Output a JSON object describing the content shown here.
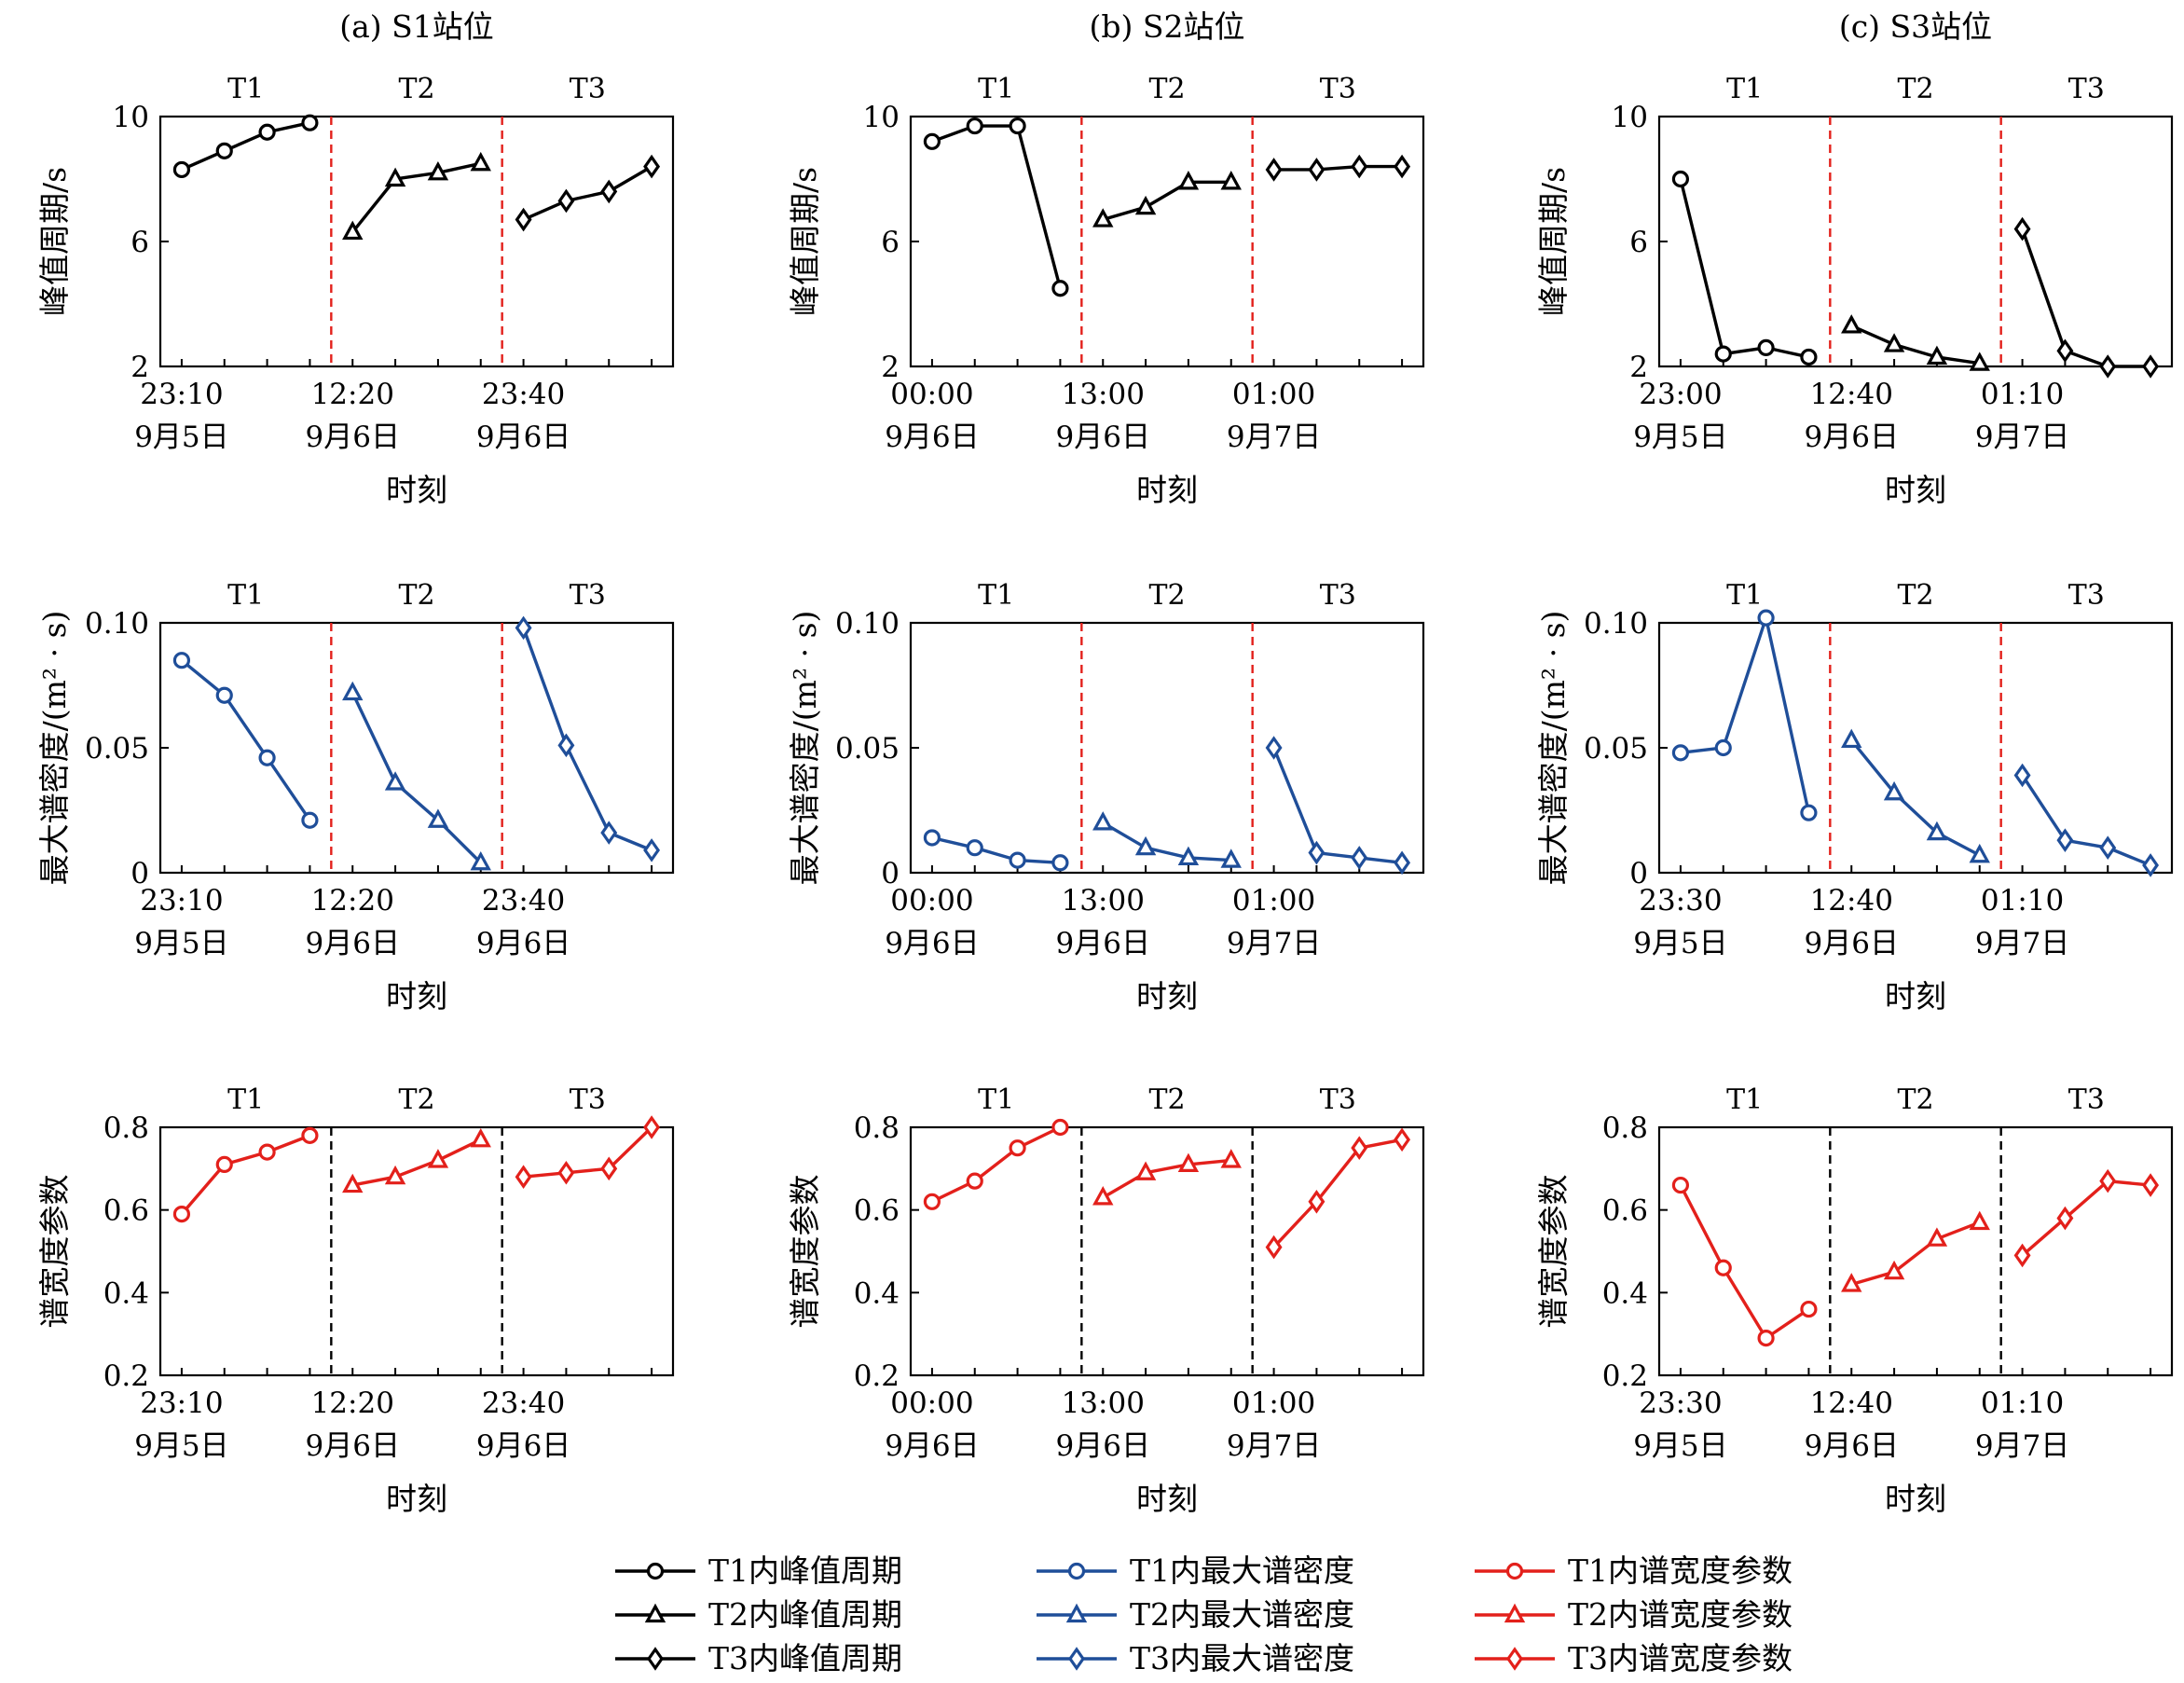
{
  "colors": {
    "black": "#000000",
    "blue": "#1f4e99",
    "red": "#e3201b"
  },
  "column_titles": [
    "(a) S1站位",
    "(b) S2站位",
    "(c) S3站位"
  ],
  "xlabel": "时刻",
  "group_labels": [
    "T1",
    "T2",
    "T3"
  ],
  "legend": [
    [
      {
        "label": "T1内峰值周期",
        "color": "black",
        "marker": "circle"
      },
      {
        "label": "T2内峰值周期",
        "color": "black",
        "marker": "triangle"
      },
      {
        "label": "T3内峰值周期",
        "color": "black",
        "marker": "diamond"
      }
    ],
    [
      {
        "label": "T1内最大谱密度",
        "color": "blue",
        "marker": "circle"
      },
      {
        "label": "T2内最大谱密度",
        "color": "blue",
        "marker": "triangle"
      },
      {
        "label": "T3内最大谱密度",
        "color": "blue",
        "marker": "diamond"
      }
    ],
    [
      {
        "label": "T1内谱宽度参数",
        "color": "red",
        "marker": "circle"
      },
      {
        "label": "T2内谱宽度参数",
        "color": "red",
        "marker": "triangle"
      },
      {
        "label": "T3内谱宽度参数",
        "color": "red",
        "marker": "diamond"
      }
    ]
  ],
  "chart_data": [
    {
      "type": "line",
      "row": 0,
      "col": 0,
      "ylabel": "峰值周期/s",
      "ylim": [
        2,
        10
      ],
      "yticks": [
        "2",
        "6",
        "10"
      ],
      "ytick_values": [
        2,
        6,
        10
      ],
      "color": "black",
      "divider_color": "red",
      "x_ticks": [
        {
          "time": "23:10",
          "date": "9月5日"
        },
        {
          "time": "12:20",
          "date": "9月6日"
        },
        {
          "time": "23:40",
          "date": "9月6日"
        }
      ],
      "series": [
        {
          "marker": "circle",
          "values": [
            8.3,
            8.9,
            9.5,
            9.8
          ]
        },
        {
          "marker": "triangle",
          "values": [
            6.3,
            8.0,
            8.2,
            8.5
          ]
        },
        {
          "marker": "diamond",
          "values": [
            6.7,
            7.3,
            7.6,
            8.4
          ]
        }
      ]
    },
    {
      "type": "line",
      "row": 0,
      "col": 1,
      "ylabel": "峰值周期/s",
      "ylim": [
        2,
        10
      ],
      "yticks": [
        "2",
        "6",
        "10"
      ],
      "ytick_values": [
        2,
        6,
        10
      ],
      "color": "black",
      "divider_color": "red",
      "x_ticks": [
        {
          "time": "00:00",
          "date": "9月6日"
        },
        {
          "time": "13:00",
          "date": "9月6日"
        },
        {
          "time": "01:00",
          "date": "9月7日"
        }
      ],
      "series": [
        {
          "marker": "circle",
          "values": [
            9.2,
            9.7,
            9.7,
            4.5
          ]
        },
        {
          "marker": "triangle",
          "values": [
            6.7,
            7.1,
            7.9,
            7.9
          ]
        },
        {
          "marker": "diamond",
          "values": [
            8.3,
            8.3,
            8.4,
            8.4
          ]
        }
      ]
    },
    {
      "type": "line",
      "row": 0,
      "col": 2,
      "ylabel": "峰值周期/s",
      "ylim": [
        2,
        10
      ],
      "yticks": [
        "2",
        "6",
        "10"
      ],
      "ytick_values": [
        2,
        6,
        10
      ],
      "color": "black",
      "divider_color": "red",
      "x_ticks": [
        {
          "time": "23:00",
          "date": "9月5日"
        },
        {
          "time": "12:40",
          "date": "9月6日"
        },
        {
          "time": "01:10",
          "date": "9月7日"
        }
      ],
      "series": [
        {
          "marker": "circle",
          "values": [
            8.0,
            2.4,
            2.6,
            2.3
          ]
        },
        {
          "marker": "triangle",
          "values": [
            3.3,
            2.7,
            2.3,
            2.1
          ]
        },
        {
          "marker": "diamond",
          "values": [
            6.4,
            2.5,
            2.0,
            2.0
          ]
        }
      ]
    },
    {
      "type": "line",
      "row": 1,
      "col": 0,
      "ylabel": "最大谱密度/(m² · s)",
      "ylim": [
        0,
        0.1
      ],
      "yticks": [
        "0",
        "0.05",
        "0.10"
      ],
      "ytick_values": [
        0,
        0.05,
        0.1
      ],
      "color": "blue",
      "divider_color": "red",
      "x_ticks": [
        {
          "time": "23:10",
          "date": "9月5日"
        },
        {
          "time": "12:20",
          "date": "9月6日"
        },
        {
          "time": "23:40",
          "date": "9月6日"
        }
      ],
      "series": [
        {
          "marker": "circle",
          "values": [
            0.085,
            0.071,
            0.046,
            0.021
          ]
        },
        {
          "marker": "triangle",
          "values": [
            0.072,
            0.036,
            0.021,
            0.004
          ]
        },
        {
          "marker": "diamond",
          "values": [
            0.098,
            0.051,
            0.016,
            0.009
          ]
        }
      ]
    },
    {
      "type": "line",
      "row": 1,
      "col": 1,
      "ylabel": "最大谱密度/(m² · s)",
      "ylim": [
        0,
        0.1
      ],
      "yticks": [
        "0",
        "0.05",
        "0.10"
      ],
      "ytick_values": [
        0,
        0.05,
        0.1
      ],
      "color": "blue",
      "divider_color": "red",
      "x_ticks": [
        {
          "time": "00:00",
          "date": "9月6日"
        },
        {
          "time": "13:00",
          "date": "9月6日"
        },
        {
          "time": "01:00",
          "date": "9月7日"
        }
      ],
      "series": [
        {
          "marker": "circle",
          "values": [
            0.014,
            0.01,
            0.005,
            0.004
          ]
        },
        {
          "marker": "triangle",
          "values": [
            0.02,
            0.01,
            0.006,
            0.005
          ]
        },
        {
          "marker": "diamond",
          "values": [
            0.05,
            0.008,
            0.006,
            0.004
          ]
        }
      ]
    },
    {
      "type": "line",
      "row": 1,
      "col": 2,
      "ylabel": "最大谱密度/(m² · s)",
      "ylim": [
        0,
        0.1
      ],
      "yticks": [
        "0",
        "0.05",
        "0.10"
      ],
      "ytick_values": [
        0,
        0.05,
        0.1
      ],
      "color": "blue",
      "divider_color": "red",
      "x_ticks": [
        {
          "time": "23:30",
          "date": "9月5日"
        },
        {
          "time": "12:40",
          "date": "9月6日"
        },
        {
          "time": "01:10",
          "date": "9月7日"
        }
      ],
      "series": [
        {
          "marker": "circle",
          "values": [
            0.048,
            0.05,
            0.102,
            0.024
          ]
        },
        {
          "marker": "triangle",
          "values": [
            0.053,
            0.032,
            0.016,
            0.007
          ]
        },
        {
          "marker": "diamond",
          "values": [
            0.039,
            0.013,
            0.01,
            0.003
          ]
        }
      ]
    },
    {
      "type": "line",
      "row": 2,
      "col": 0,
      "ylabel": "谱宽度参数",
      "ylim": [
        0.2,
        0.8
      ],
      "yticks": [
        "0.2",
        "0.4",
        "0.6",
        "0.8"
      ],
      "ytick_values": [
        0.2,
        0.4,
        0.6,
        0.8
      ],
      "color": "red",
      "divider_color": "black",
      "x_ticks": [
        {
          "time": "23:10",
          "date": "9月5日"
        },
        {
          "time": "12:20",
          "date": "9月6日"
        },
        {
          "time": "23:40",
          "date": "9月6日"
        }
      ],
      "series": [
        {
          "marker": "circle",
          "values": [
            0.59,
            0.71,
            0.74,
            0.78
          ]
        },
        {
          "marker": "triangle",
          "values": [
            0.66,
            0.68,
            0.72,
            0.77
          ]
        },
        {
          "marker": "diamond",
          "values": [
            0.68,
            0.69,
            0.7,
            0.8
          ]
        }
      ]
    },
    {
      "type": "line",
      "row": 2,
      "col": 1,
      "ylabel": "谱宽度参数",
      "ylim": [
        0.2,
        0.8
      ],
      "yticks": [
        "0.2",
        "0.4",
        "0.6",
        "0.8"
      ],
      "ytick_values": [
        0.2,
        0.4,
        0.6,
        0.8
      ],
      "color": "red",
      "divider_color": "black",
      "x_ticks": [
        {
          "time": "00:00",
          "date": "9月6日"
        },
        {
          "time": "13:00",
          "date": "9月6日"
        },
        {
          "time": "01:00",
          "date": "9月7日"
        }
      ],
      "series": [
        {
          "marker": "circle",
          "values": [
            0.62,
            0.67,
            0.75,
            0.8
          ]
        },
        {
          "marker": "triangle",
          "values": [
            0.63,
            0.69,
            0.71,
            0.72
          ]
        },
        {
          "marker": "diamond",
          "values": [
            0.51,
            0.62,
            0.75,
            0.77
          ]
        }
      ]
    },
    {
      "type": "line",
      "row": 2,
      "col": 2,
      "ylabel": "谱宽度参数",
      "ylim": [
        0.2,
        0.8
      ],
      "yticks": [
        "0.2",
        "0.4",
        "0.6",
        "0.8"
      ],
      "ytick_values": [
        0.2,
        0.4,
        0.6,
        0.8
      ],
      "color": "red",
      "divider_color": "black",
      "x_ticks": [
        {
          "time": "23:30",
          "date": "9月5日"
        },
        {
          "time": "12:40",
          "date": "9月6日"
        },
        {
          "time": "01:10",
          "date": "9月7日"
        }
      ],
      "series": [
        {
          "marker": "circle",
          "values": [
            0.66,
            0.46,
            0.29,
            0.36
          ]
        },
        {
          "marker": "triangle",
          "values": [
            0.42,
            0.45,
            0.53,
            0.57
          ]
        },
        {
          "marker": "diamond",
          "values": [
            0.49,
            0.58,
            0.67,
            0.66
          ]
        }
      ]
    }
  ]
}
